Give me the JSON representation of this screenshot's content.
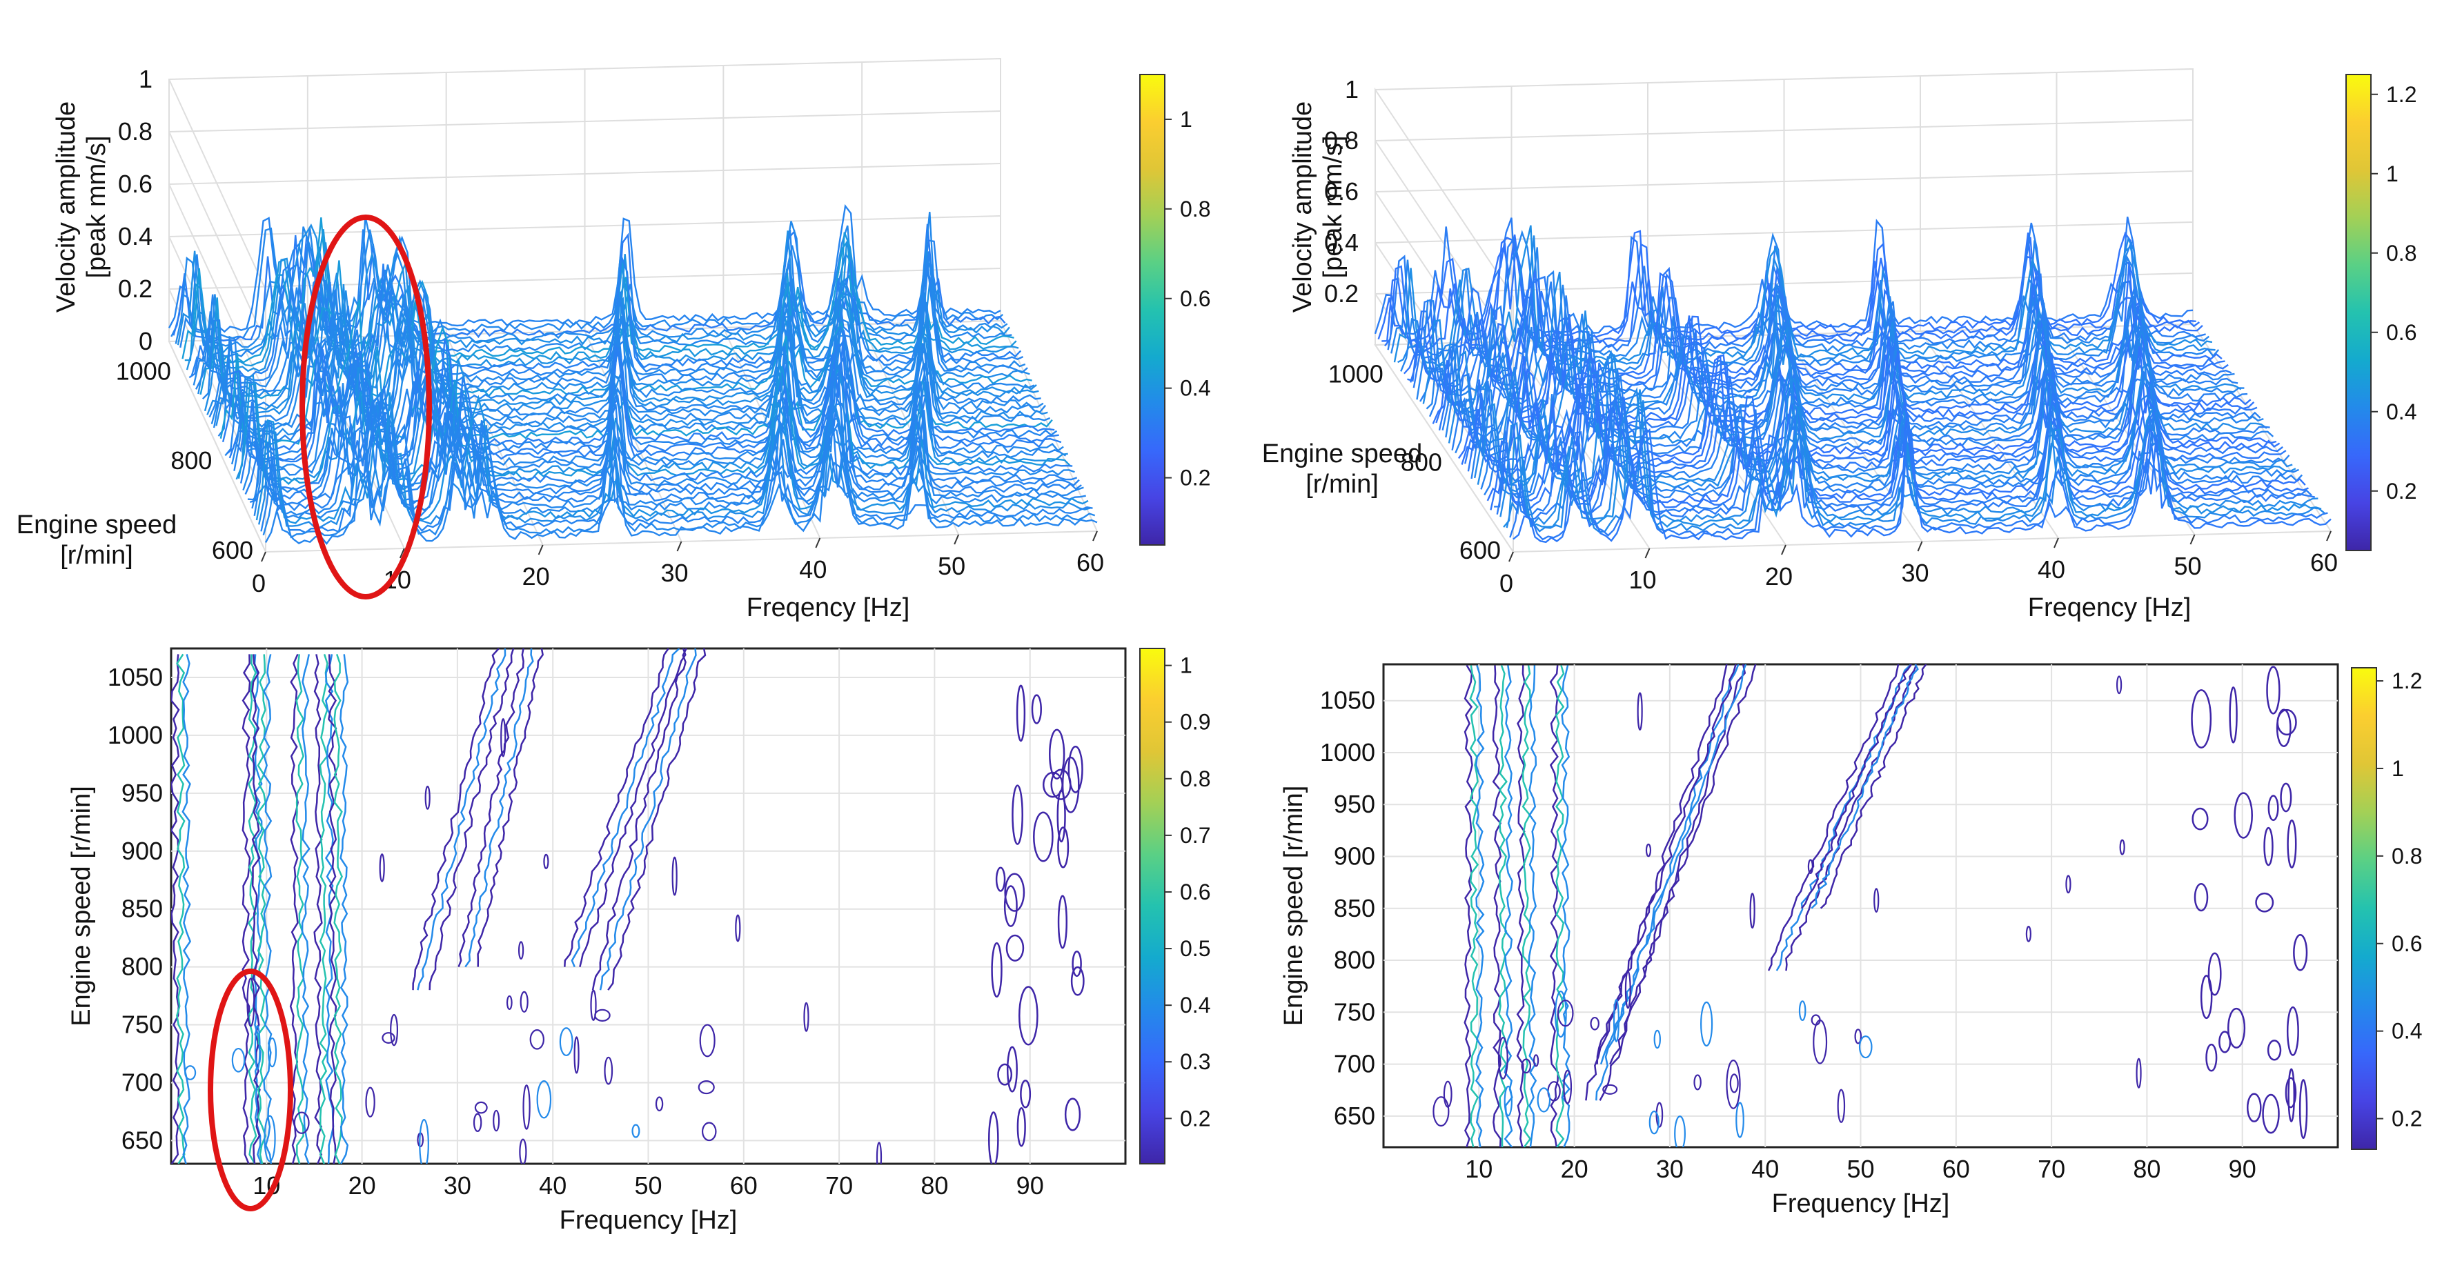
{
  "chart_data": [
    {
      "type": "waterfall-3d",
      "panel": "top-left",
      "zlabel": "Velocity amplitude\n[peak mm/s]",
      "xlabel": "Freqency [Hz]",
      "ylabel": "Engine speed\n[r/min]",
      "x_ticks": [
        "0",
        "10",
        "20",
        "30",
        "40",
        "50",
        "60"
      ],
      "y_ticks": [
        "600",
        "800",
        "1000"
      ],
      "z_ticks": [
        "0",
        "0.2",
        "0.4",
        "0.6",
        "0.8",
        "1"
      ],
      "xlim": [
        0,
        60
      ],
      "ylim": [
        600,
        1070
      ],
      "zlim": [
        0,
        1
      ],
      "colorbar_ticks": [
        "0.2",
        "0.4",
        "0.6",
        "0.8",
        "1"
      ],
      "colorbar_range": [
        0.05,
        1.1
      ],
      "peaks_hz": [
        1,
        7,
        9,
        10,
        14,
        16,
        29,
        41,
        45,
        51
      ],
      "annotation": "red ellipse highlighting the 7–10 Hz peaks"
    },
    {
      "type": "waterfall-3d",
      "panel": "top-right",
      "zlabel": "Velocity amplitude\n[peak mm/s]",
      "xlabel": "Freqency [Hz]",
      "ylabel": "Engine speed\n[r/min]",
      "x_ticks": [
        "0",
        "10",
        "20",
        "30",
        "40",
        "50",
        "60"
      ],
      "y_ticks": [
        "600",
        "800",
        "1000"
      ],
      "z_ticks": [
        "0.2",
        "0.4",
        "0.6",
        "0.8",
        "1"
      ],
      "xlim": [
        0,
        60
      ],
      "ylim": [
        600,
        1070
      ],
      "zlim": [
        0,
        1
      ],
      "colorbar_ticks": [
        "0.2",
        "0.4",
        "0.6",
        "0.8",
        "1",
        "1.2"
      ],
      "colorbar_range": [
        0.05,
        1.25
      ],
      "peaks_hz": [
        1,
        5,
        9,
        10,
        19,
        25,
        33,
        44,
        51
      ],
      "annotation": ""
    },
    {
      "type": "contour",
      "panel": "bottom-left",
      "xlabel": "Frequency [Hz]",
      "ylabel": "Engine speed [r/min]",
      "x_ticks": [
        "10",
        "20",
        "30",
        "40",
        "50",
        "60",
        "70",
        "80",
        "90"
      ],
      "y_ticks": [
        "650",
        "700",
        "750",
        "800",
        "850",
        "900",
        "950",
        "1000",
        "1050"
      ],
      "xlim": [
        0,
        100
      ],
      "ylim": [
        630,
        1075
      ],
      "colorbar_ticks": [
        "0.2",
        "0.3",
        "0.4",
        "0.5",
        "0.6",
        "0.7",
        "0.8",
        "0.9",
        "1"
      ],
      "colorbar_range": [
        0.12,
        1.03
      ],
      "vertical_bands_hz": [
        1,
        8.5,
        9.5,
        13.5,
        16,
        17.5
      ],
      "diagonal_orders": [
        {
          "from": [
            26,
            780
          ],
          "to": [
            35,
            1075
          ]
        },
        {
          "from": [
            31,
            800
          ],
          "to": [
            38,
            1075
          ]
        },
        {
          "from": [
            42,
            800
          ],
          "to": [
            53,
            1075
          ]
        },
        {
          "from": [
            45,
            780
          ],
          "to": [
            55,
            1075
          ]
        }
      ],
      "right_cluster_hz": [
        85,
        95
      ],
      "annotation": "red ellipse around 10 Hz, 640–790 r/min"
    },
    {
      "type": "contour",
      "panel": "bottom-right",
      "xlabel": "Frequency [Hz]",
      "ylabel": "Engine speed [r/min]",
      "x_ticks": [
        "10",
        "20",
        "30",
        "40",
        "50",
        "60",
        "70",
        "80",
        "90"
      ],
      "y_ticks": [
        "650",
        "700",
        "750",
        "800",
        "850",
        "900",
        "950",
        "1000",
        "1050"
      ],
      "xlim": [
        0,
        100
      ],
      "ylim": [
        620,
        1085
      ],
      "colorbar_ticks": [
        "0.2",
        "0.4",
        "0.6",
        "0.8",
        "1",
        "1.2"
      ],
      "colorbar_range": [
        0.13,
        1.23
      ],
      "vertical_bands_hz": [
        9.5,
        12.5,
        15,
        18.5
      ],
      "diagonal_orders": [
        {
          "from": [
            22,
            665
          ],
          "to": [
            37,
            1085
          ]
        },
        {
          "from": [
            23,
            700
          ],
          "to": [
            38,
            1085
          ]
        },
        {
          "from": [
            41,
            790
          ],
          "to": [
            55,
            1085
          ]
        },
        {
          "from": [
            45,
            850
          ],
          "to": [
            56,
            1085
          ]
        }
      ],
      "right_cluster_hz": [
        85,
        97
      ],
      "annotation": ""
    }
  ]
}
